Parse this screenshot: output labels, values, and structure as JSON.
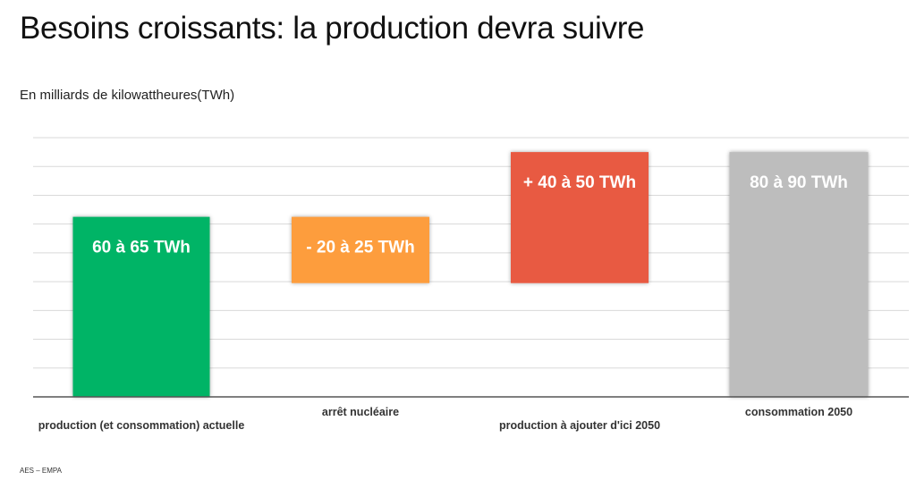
{
  "title": "Besoins croissants: la production devra suivre",
  "unit_label": "En milliards de kilowattheures(TWh)",
  "source": "AES – EMPA",
  "colors": {
    "production": "#00b466",
    "arret": "#fd9d3e",
    "ajout": "#e85a42",
    "total": "#bdbdbd"
  },
  "chart_data": {
    "type": "bar",
    "subtype": "waterfall",
    "categories": [
      "production (et consommation) actuelle",
      "arrêt nucléaire",
      "production à ajouter d'ici 2050",
      "consommation 2050"
    ],
    "bars": [
      {
        "label": "60 à 65 TWh",
        "bottom": 0,
        "top": 62.5,
        "color_key": "production"
      },
      {
        "label": "- 20 à 25 TWh",
        "bottom": 39.5,
        "top": 62.5,
        "color_key": "arret"
      },
      {
        "label": "+ 40 à 50 TWh",
        "bottom": 39.5,
        "top": 85,
        "color_key": "ajout"
      },
      {
        "label": "80 à 90 TWh",
        "bottom": 0,
        "top": 85,
        "color_key": "total"
      }
    ],
    "ylim": [
      0,
      90
    ],
    "grid": true,
    "legend": "none"
  }
}
